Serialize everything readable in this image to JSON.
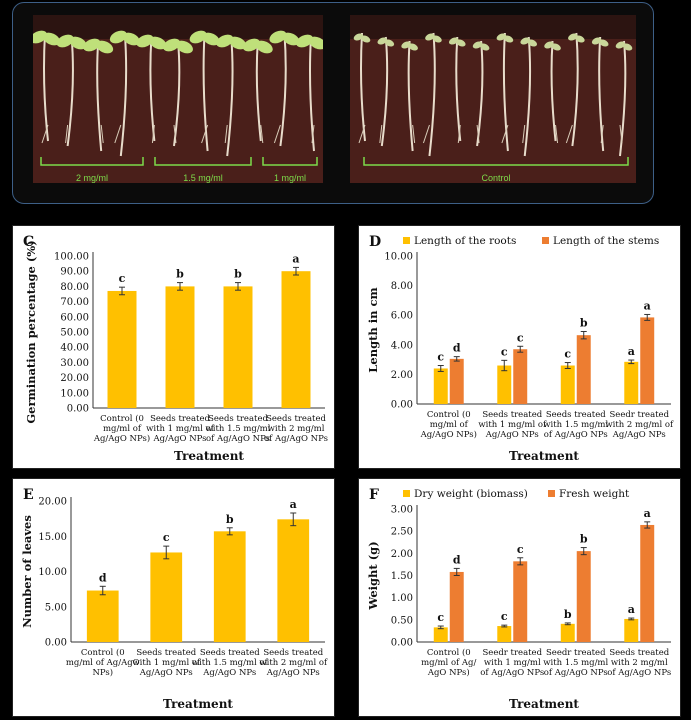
{
  "photos": {
    "treated": {
      "labels": [
        "2 mg/ml",
        "1.5 mg/ml",
        "1 mg/ml"
      ]
    },
    "control": {
      "labels": [
        "Control"
      ]
    },
    "label_color": "#7ddc4a",
    "bg_color": "#4a1f1a"
  },
  "colors": {
    "roots": "#ffc000",
    "stems": "#ed7d31",
    "single": "#ffc000"
  },
  "chart_data": [
    {
      "panel": "C",
      "type": "bar",
      "categories": [
        "Control (0 mg/ml of Ag/AgO NPs)",
        "Seeds treated with 1 mg/ml of Ag/AgO NPs",
        "Seeds treated with 1.5 mg/ml of Ag/AgO NPs",
        "Seeds treated with 2 mg/ml of Ag/AgO NPs"
      ],
      "category_lines": [
        [
          "Control (0",
          "mg/ml of",
          "Ag/AgO NPs)"
        ],
        [
          "Seeds treated",
          "with 1 mg/ml of",
          "Ag/AgO NPs"
        ],
        [
          "Seeds treated",
          "with 1.5 mg/ml",
          "of Ag/AgO NPs"
        ],
        [
          "Seeds treated",
          "with 2 mg/ml",
          "of Ag/AgO NPs"
        ]
      ],
      "series": [
        {
          "values": [
            77,
            80,
            80,
            90
          ],
          "errors": [
            2.5,
            2.5,
            2.5,
            2.5
          ],
          "letters": [
            "c",
            "b",
            "b",
            "a"
          ]
        }
      ],
      "ylabel": "Germination percentage (%)",
      "xlabel": "Treatment",
      "ylim": [
        0,
        100
      ],
      "ytick_step": 10,
      "ytick_labels": [
        "0.00",
        "10.00",
        "20.00",
        "30.00",
        "40.00",
        "50.00",
        "60.00",
        "70.00",
        "80.00",
        "90.00",
        "100.00"
      ],
      "legend": []
    },
    {
      "panel": "D",
      "type": "bar",
      "categories": [
        "Control (0 mg/ml of Ag/AgO NPs)",
        "Seeds treated with 1 mg/ml of Ag/AgO NPs",
        "Seeds treated with 1.5 mg/ml of Ag/AgO NPs",
        "Seedr treated with 2 mg/ml of Ag/AgO NPs"
      ],
      "category_lines": [
        [
          "Control (0",
          "mg/ml of",
          "Ag/AgO NPs)"
        ],
        [
          "Seeds treated",
          "with 1 mg/ml of",
          "Ag/AgO NPs"
        ],
        [
          "Seeds treated",
          "with 1.5 mg/ml",
          "of Ag/AgO NPs"
        ],
        [
          "Seedr treated",
          "with 2 mg/ml of",
          "Ag/AgO NPs"
        ]
      ],
      "series": [
        {
          "name": "Length of the roots",
          "values": [
            2.4,
            2.6,
            2.6,
            2.85
          ],
          "errors": [
            0.2,
            0.35,
            0.2,
            0.12
          ],
          "letters": [
            "c",
            "c",
            "c",
            "a"
          ]
        },
        {
          "name": "Length of the stems",
          "values": [
            3.05,
            3.7,
            4.65,
            5.85
          ],
          "errors": [
            0.15,
            0.2,
            0.25,
            0.2
          ],
          "letters": [
            "d",
            "c",
            "b",
            "a"
          ]
        }
      ],
      "ylabel": "Length in cm",
      "xlabel": "Treatment",
      "ylim": [
        0,
        10
      ],
      "ytick_step": 2,
      "ytick_labels": [
        "0.00",
        "2.00",
        "4.00",
        "6.00",
        "8.00",
        "10.00"
      ],
      "legend": [
        "Length of the roots",
        "Length of the stems"
      ]
    },
    {
      "panel": "E",
      "type": "bar",
      "categories": [
        "Control (0 mg/ml of Ag/AgO NPs)",
        "Seeds treated with 1 mg/ml of Ag/AgO NPs",
        "Seeds treated with 1.5 mg/ml of Ag/AgO NPs",
        "Seeds treated with 2 mg/ml of Ag/AgO NPs"
      ],
      "category_lines": [
        [
          "Control (0",
          "mg/ml of Ag/AgO",
          "NPs)"
        ],
        [
          "Seeds treated",
          "with 1 mg/ml of",
          "Ag/AgO NPs"
        ],
        [
          "Seeds treated",
          "with 1.5 mg/ml of",
          "Ag/AgO NPs"
        ],
        [
          "Seeds treated",
          "with 2 mg/ml of",
          "Ag/AgO NPs"
        ]
      ],
      "series": [
        {
          "values": [
            7.3,
            12.7,
            15.7,
            17.4
          ],
          "errors": [
            0.6,
            0.9,
            0.5,
            0.9
          ],
          "letters": [
            "d",
            "c",
            "b",
            "a"
          ]
        }
      ],
      "ylabel": "Number of leaves",
      "xlabel": "Treatment",
      "ylim": [
        0,
        20
      ],
      "ytick_step": 5,
      "ytick_labels": [
        "0.00",
        "5.00",
        "10.00",
        "15.00",
        "20.00"
      ],
      "legend": []
    },
    {
      "panel": "F",
      "type": "bar",
      "categories": [
        "Control (0 mg/ml of Ag/ AgO NPs)",
        "Seedr treated with 1 mg/ml of Ag/AgO NPs",
        "Seedr treated with 1.5 mg/ml of Ag/AgO NPs",
        "Seeds treated with 2 mg/ml of Ag/AgO NPs"
      ],
      "category_lines": [
        [
          "Control (0",
          "mg/ml of Ag/",
          "AgO NPs)"
        ],
        [
          "Seedr treated",
          "with 1 mg/ml",
          "of Ag/AgO NPs"
        ],
        [
          "Seedr treated",
          "with 1.5 mg/ml",
          "of Ag/AgO NPs"
        ],
        [
          "Seeds treated",
          "with 2 mg/ml",
          "of Ag/AgO NPs"
        ]
      ],
      "series": [
        {
          "name": "Dry weight (biomass)",
          "values": [
            0.33,
            0.36,
            0.41,
            0.52
          ],
          "errors": [
            0.03,
            0.02,
            0.02,
            0.02
          ],
          "letters": [
            "c",
            "c",
            "b",
            "a"
          ]
        },
        {
          "name": "Fresh weight",
          "values": [
            1.58,
            1.82,
            2.05,
            2.64
          ],
          "errors": [
            0.08,
            0.08,
            0.08,
            0.07
          ],
          "letters": [
            "d",
            "c",
            "b",
            "a"
          ]
        }
      ],
      "ylabel": "Weight (g)",
      "xlabel": "Treatment",
      "ylim": [
        0,
        3
      ],
      "ytick_step": 0.5,
      "ytick_labels": [
        "0.00",
        "0.50",
        "1.00",
        "1.50",
        "2.00",
        "2.50",
        "3.00"
      ],
      "legend": [
        "Dry weight (biomass)",
        "Fresh weight"
      ]
    }
  ]
}
